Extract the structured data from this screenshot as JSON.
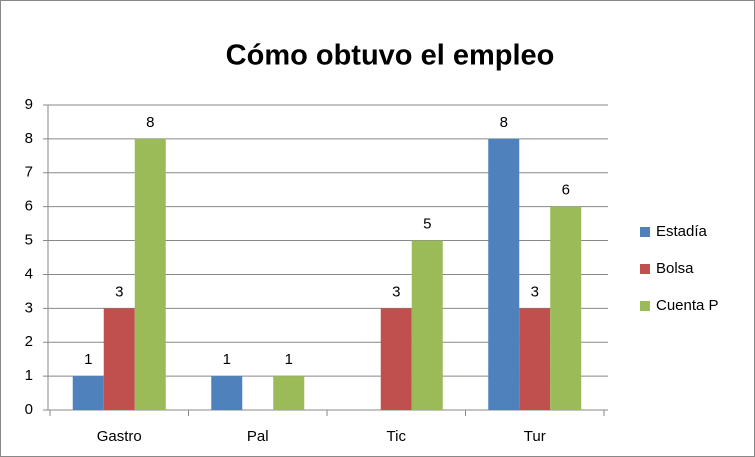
{
  "chart_data": {
    "type": "bar",
    "title": "Cómo obtuvo el empleo",
    "categories": [
      "Gastro",
      "Pal",
      "Tic",
      "Tur"
    ],
    "series": [
      {
        "name": "Estadía",
        "color": "#4f81bd",
        "values": [
          1,
          1,
          null,
          8
        ]
      },
      {
        "name": "Bolsa",
        "color": "#c0504d",
        "values": [
          3,
          null,
          3,
          3
        ]
      },
      {
        "name": "Cuenta P",
        "color": "#9bbb59",
        "values": [
          8,
          1,
          5,
          6
        ]
      }
    ],
    "ylim": [
      0,
      9
    ],
    "yticks": [
      0,
      1,
      2,
      3,
      4,
      5,
      6,
      7,
      8,
      9
    ],
    "grid": true,
    "legend": "right"
  }
}
